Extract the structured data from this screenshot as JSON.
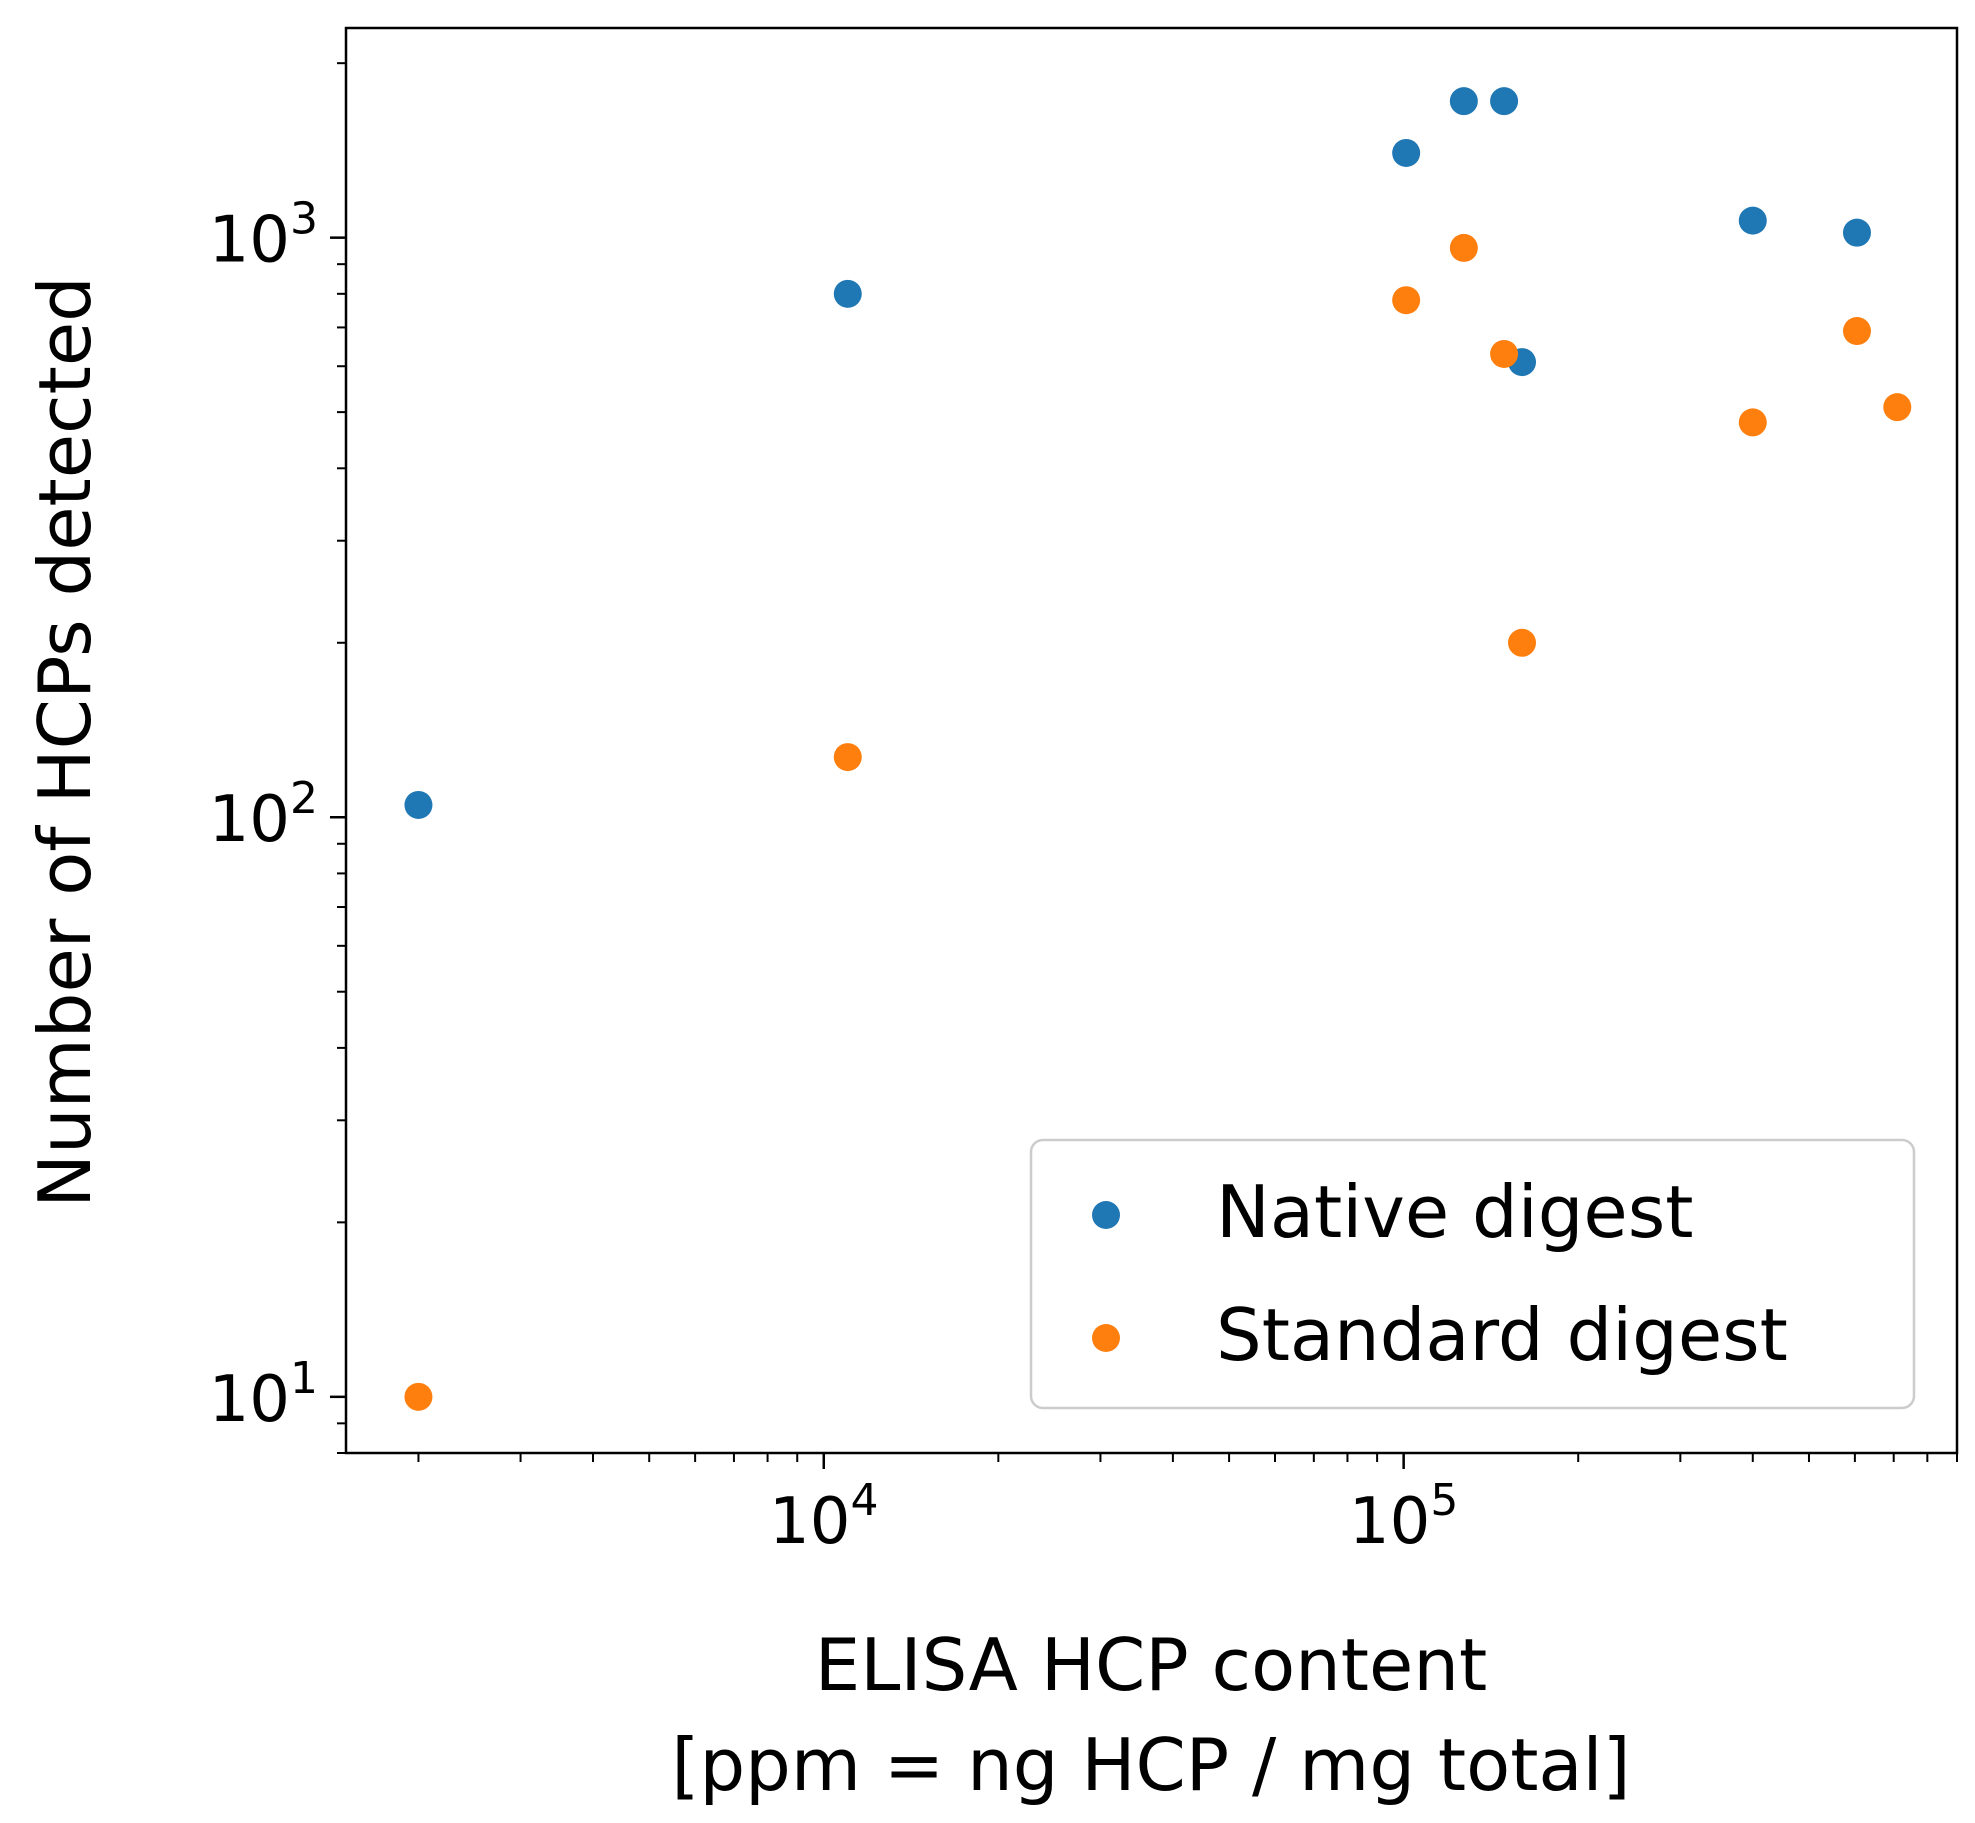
{
  "chart_data": {
    "type": "scatter",
    "title": "",
    "xlabel": [
      "ELISA HCP content",
      "[ppm = ng HCP / mg total]"
    ],
    "ylabel": "Number of HCPs detected",
    "xscale": "log",
    "yscale": "log",
    "xlim": [
      1500,
      900000
    ],
    "ylim": [
      8,
      2300
    ],
    "xticks": [
      {
        "value": 10000,
        "base": "10",
        "exp": "4"
      },
      {
        "value": 100000,
        "base": "10",
        "exp": "5"
      }
    ],
    "yticks": [
      {
        "value": 10,
        "base": "10",
        "exp": "1"
      },
      {
        "value": 100,
        "base": "10",
        "exp": "2"
      },
      {
        "value": 1000,
        "base": "10",
        "exp": "3"
      }
    ],
    "grid": false,
    "legend_position": "lower-right",
    "series": [
      {
        "name": "Native digest",
        "color": "#1f77b4",
        "points": [
          {
            "x": 2000,
            "y": 105
          },
          {
            "x": 11000,
            "y": 800
          },
          {
            "x": 101000,
            "y": 1400
          },
          {
            "x": 127000,
            "y": 1720
          },
          {
            "x": 149000,
            "y": 1720
          },
          {
            "x": 160000,
            "y": 610
          },
          {
            "x": 400000,
            "y": 1070
          },
          {
            "x": 605000,
            "y": 1020
          }
        ]
      },
      {
        "name": "Standard digest",
        "color": "#ff7f0e",
        "points": [
          {
            "x": 2000,
            "y": 10
          },
          {
            "x": 11000,
            "y": 127
          },
          {
            "x": 101000,
            "y": 780
          },
          {
            "x": 127000,
            "y": 960
          },
          {
            "x": 149000,
            "y": 630
          },
          {
            "x": 160000,
            "y": 200
          },
          {
            "x": 400000,
            "y": 480
          },
          {
            "x": 605000,
            "y": 690
          },
          {
            "x": 710000,
            "y": 510
          }
        ]
      }
    ]
  }
}
